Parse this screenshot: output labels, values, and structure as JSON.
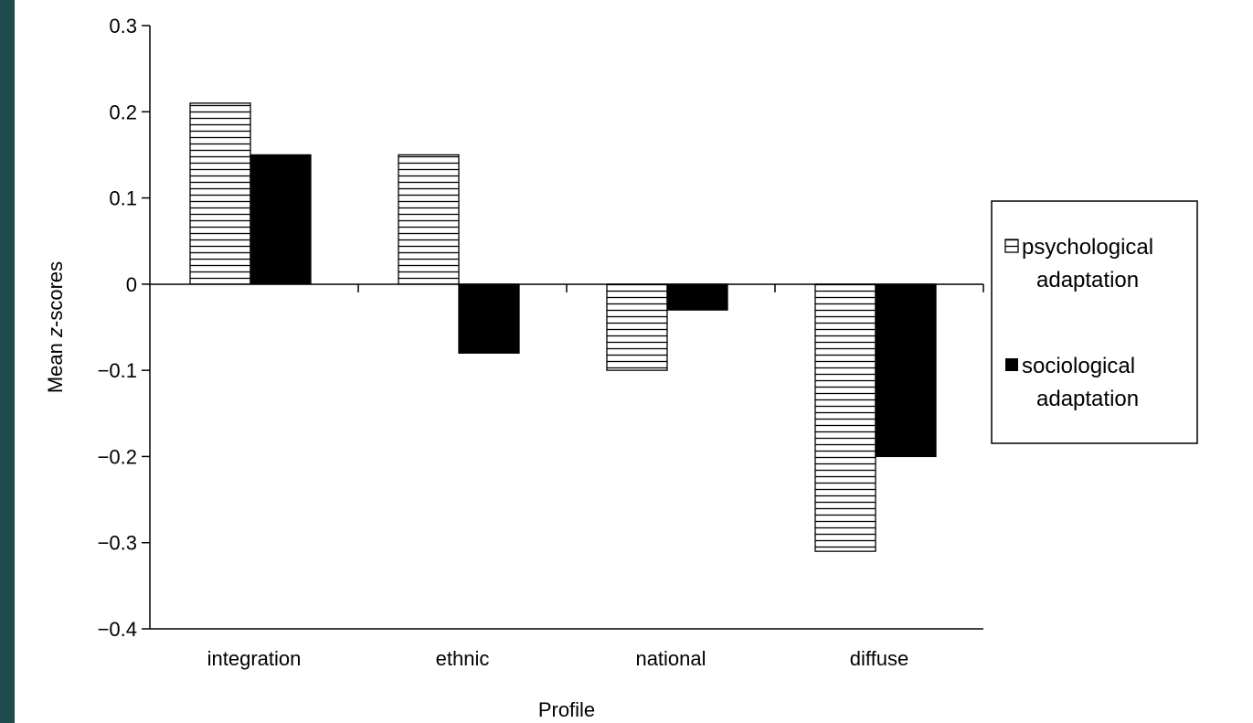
{
  "chart_data": {
    "type": "bar",
    "title": "",
    "xlabel": "Profile",
    "ylabel_prefix": "Mean ",
    "ylabel_italic": "z",
    "ylabel_suffix": "-scores",
    "categories": [
      "integration",
      "ethnic",
      "national",
      "diffuse"
    ],
    "series": [
      {
        "name_lines": [
          "psychological",
          "adaptation"
        ],
        "values": [
          0.21,
          0.15,
          -0.1,
          -0.31
        ],
        "fill": "hatched"
      },
      {
        "name_lines": [
          "sociological",
          "adaptation"
        ],
        "values": [
          0.15,
          -0.08,
          -0.03,
          -0.2
        ],
        "fill": "#000000"
      }
    ],
    "ylim": [
      -0.4,
      0.3
    ],
    "yticks": [
      0.3,
      0.2,
      0.1,
      0,
      -0.1,
      -0.2,
      -0.3,
      -0.4
    ],
    "ytick_labels": [
      "0.3",
      "0.2",
      "0.1",
      "0",
      "−0.1",
      "−0.2",
      "−0.3",
      "−0.4"
    ],
    "grid": false,
    "legend_position": "right",
    "colors": {
      "page_background": "#1f4a4e",
      "plot_background": "#ffffff",
      "ink": "#000000"
    }
  }
}
